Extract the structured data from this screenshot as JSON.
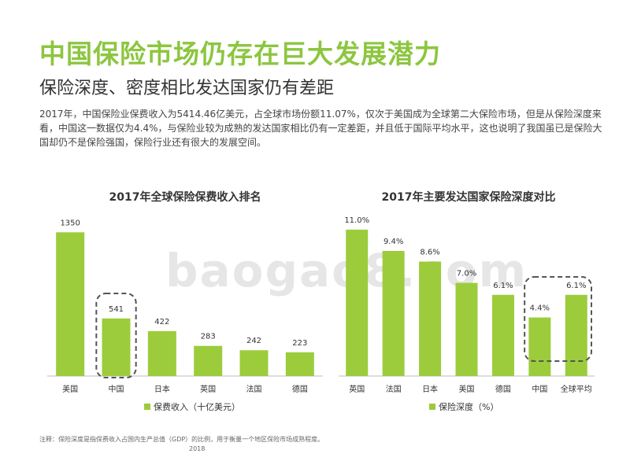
{
  "page": {
    "title": "中国保险市场仍存在巨大发展潜力",
    "subtitle": "保险深度、密度相比发达国家仍有差距",
    "body": "2017年，中国保险业保费收入为5414.46亿美元，占全球市场份额11.07%，仅次于美国成为全球第二大保险市场，但是从保险深度来看，中国这一数据仅为4.4%，与保险业较为成熟的发达国家相比仍有一定差距，并且低于国际平均水平，这也说明了我国虽已是保险大国却仍不是保险强国，保险行业还有很大的发展空间。",
    "footnote": "注释：保险深度是指保费收入占国内生产总值（GDP）的比例，用于衡量一个地区保险市场成熟程度。",
    "footnote_year": "2018",
    "watermark": "baogao8.com"
  },
  "colors": {
    "bar": "#9ccc3c",
    "title": "#8cc63f",
    "highlight_border": "#555555"
  },
  "chart_data": [
    {
      "type": "bar",
      "title": "2017年全球保险保费收入排名",
      "categories": [
        "美国",
        "中国",
        "日本",
        "英国",
        "法国",
        "德国"
      ],
      "series": [
        {
          "name": "保费收入（十亿美元）",
          "values": [
            1350,
            541,
            422,
            283,
            242,
            223
          ]
        }
      ],
      "value_labels": [
        "1350",
        "541",
        "422",
        "283",
        "242",
        "223"
      ],
      "legend": "保费收入（十亿美元）",
      "legend_position": "bottom",
      "highlight_category": "中国",
      "ylim": [
        0,
        1500
      ]
    },
    {
      "type": "bar",
      "title": "2017年主要发达国家保险深度对比",
      "categories": [
        "英国",
        "法国",
        "日本",
        "美国",
        "德国",
        "中国",
        "全球平均"
      ],
      "series": [
        {
          "name": "保险深度（%）",
          "values": [
            11.0,
            9.4,
            8.6,
            7.0,
            6.1,
            4.4,
            6.1
          ]
        }
      ],
      "value_labels": [
        "11.0%",
        "9.4%",
        "8.6%",
        "7.0%",
        "6.1%",
        "4.4%",
        "6.1%"
      ],
      "legend": "保险深度（%）",
      "legend_position": "bottom",
      "highlight_categories": [
        "中国",
        "全球平均"
      ],
      "ylim": [
        0,
        12
      ]
    }
  ]
}
